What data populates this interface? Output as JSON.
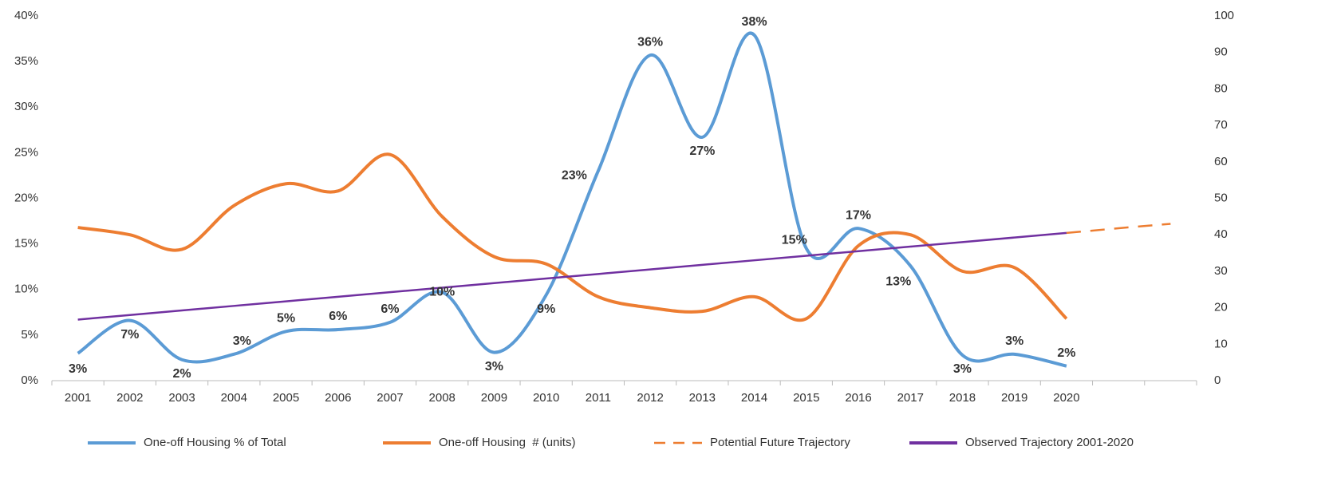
{
  "chart_data": {
    "type": "line",
    "categories": [
      "2001",
      "2002",
      "2003",
      "2004",
      "2005",
      "2006",
      "2007",
      "2008",
      "2009",
      "2010",
      "2011",
      "2012",
      "2013",
      "2014",
      "2015",
      "2016",
      "2017",
      "2018",
      "2019",
      "2020",
      null,
      null
    ],
    "ylim": [
      0,
      40
    ],
    "yticks": [
      {
        "value": 0,
        "label": "0%"
      },
      {
        "value": 5,
        "label": "5%"
      },
      {
        "value": 10,
        "label": "10%"
      },
      {
        "value": 15,
        "label": "15%"
      },
      {
        "value": 20,
        "label": "20%"
      },
      {
        "value": 25,
        "label": "25%"
      },
      {
        "value": 30,
        "label": "30%"
      },
      {
        "value": 35,
        "label": "35%"
      },
      {
        "value": 40,
        "label": "40%"
      }
    ],
    "y2lim": [
      0,
      100
    ],
    "y2ticks": [
      0,
      10,
      20,
      30,
      40,
      50,
      60,
      70,
      80,
      90,
      100
    ],
    "legend": "bottom",
    "series": [
      {
        "name": "One-off Housing % of Total",
        "color": "#5b9bd5",
        "smooth": true,
        "values": [
          3.0,
          6.6,
          2.3,
          2.9,
          5.4,
          5.6,
          6.4,
          9.7,
          3.1,
          9.4,
          23.0,
          35.7,
          26.7,
          37.9,
          14.5,
          16.7,
          12.6,
          2.8,
          2.9,
          1.6,
          null,
          null
        ],
        "value_labels": [
          "3%",
          "7%",
          "2%",
          "3%",
          "5%",
          "6%",
          "6%",
          "10%",
          "3%",
          "9%",
          "23%",
          "36%",
          "27%",
          "38%",
          "15%",
          "17%",
          "13%",
          "3%",
          "3%",
          "2%",
          null,
          null
        ]
      },
      {
        "name": "One-off Housing  # (units)",
        "color": "#ed7d31",
        "smooth": true,
        "axis": "y2",
        "values": [
          42,
          40,
          36,
          48,
          54,
          52,
          62,
          45,
          34,
          32,
          23,
          20,
          19,
          23,
          17,
          37,
          40,
          30,
          31,
          17,
          null,
          null
        ]
      },
      {
        "name": "Potential Future Trajectory",
        "color": "#ed7d31",
        "dash": true,
        "axis": "y2",
        "values": [
          null,
          null,
          null,
          null,
          null,
          null,
          null,
          null,
          null,
          null,
          null,
          null,
          null,
          null,
          null,
          null,
          null,
          null,
          null,
          40.5,
          41.8,
          43
        ]
      },
      {
        "name": "Observed Trajectory 2001-2020",
        "color": "#7030a0",
        "values": [
          6.7,
          7.2,
          7.7,
          8.2,
          8.7,
          9.2,
          9.7,
          10.2,
          10.7,
          11.2,
          11.7,
          12.2,
          12.7,
          13.2,
          13.7,
          14.2,
          14.7,
          15.2,
          15.7,
          16.2,
          null,
          null
        ]
      }
    ]
  }
}
